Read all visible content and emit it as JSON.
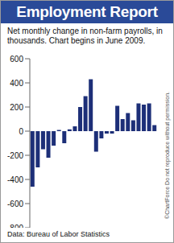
{
  "chart_data": {
    "type": "bar",
    "title": "Employment Report",
    "subtitle": "Net monthly change in non-farm payrolls, in thousands. Chart begins in June 2009.",
    "annotations": [
      "Data: Bureau of Labor Statistics",
      "©ChartForce",
      "Do not reproduce without permission."
    ],
    "categories": [
      null,
      null,
      null,
      null,
      null,
      null,
      null,
      null,
      null,
      null,
      null,
      null,
      null,
      null,
      null,
      null,
      null,
      null,
      null,
      null,
      null,
      null,
      null,
      null
    ],
    "values": [
      -460,
      -300,
      -150,
      -220,
      -120,
      10,
      -100,
      15,
      40,
      200,
      290,
      430,
      -170,
      -60,
      -20,
      -20,
      210,
      100,
      150,
      90,
      230,
      220,
      230,
      50
    ],
    "color": "#1d2f78",
    "ylim": [
      -800,
      600
    ],
    "yticks": [
      -800,
      -600,
      -400,
      -200,
      0,
      200,
      400,
      600
    ],
    "grid": false,
    "tick_labels": "y"
  }
}
